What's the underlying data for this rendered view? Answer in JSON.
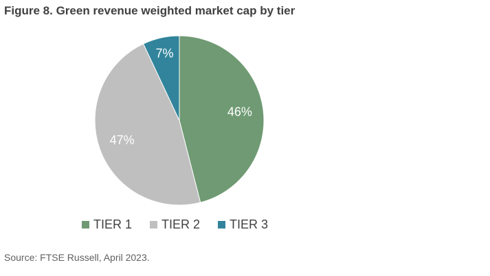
{
  "title": "Figure 8. Green revenue weighted market cap by tier",
  "source": "Source: FTSE Russell, April 2023.",
  "chart_data": {
    "type": "pie",
    "title": "Figure 8. Green revenue weighted market cap by tier",
    "slices": [
      {
        "name": "TIER 1",
        "value": 46,
        "label": "46%",
        "color": "#6f9a73"
      },
      {
        "name": "TIER 2",
        "value": 47,
        "label": "47%",
        "color": "#bfbfbf"
      },
      {
        "name": "TIER 3",
        "value": 7,
        "label": "7%",
        "color": "#31849b"
      }
    ],
    "start": "12 o'clock",
    "direction": "clockwise",
    "data_labels": "inside, white",
    "legend": "bottom"
  }
}
